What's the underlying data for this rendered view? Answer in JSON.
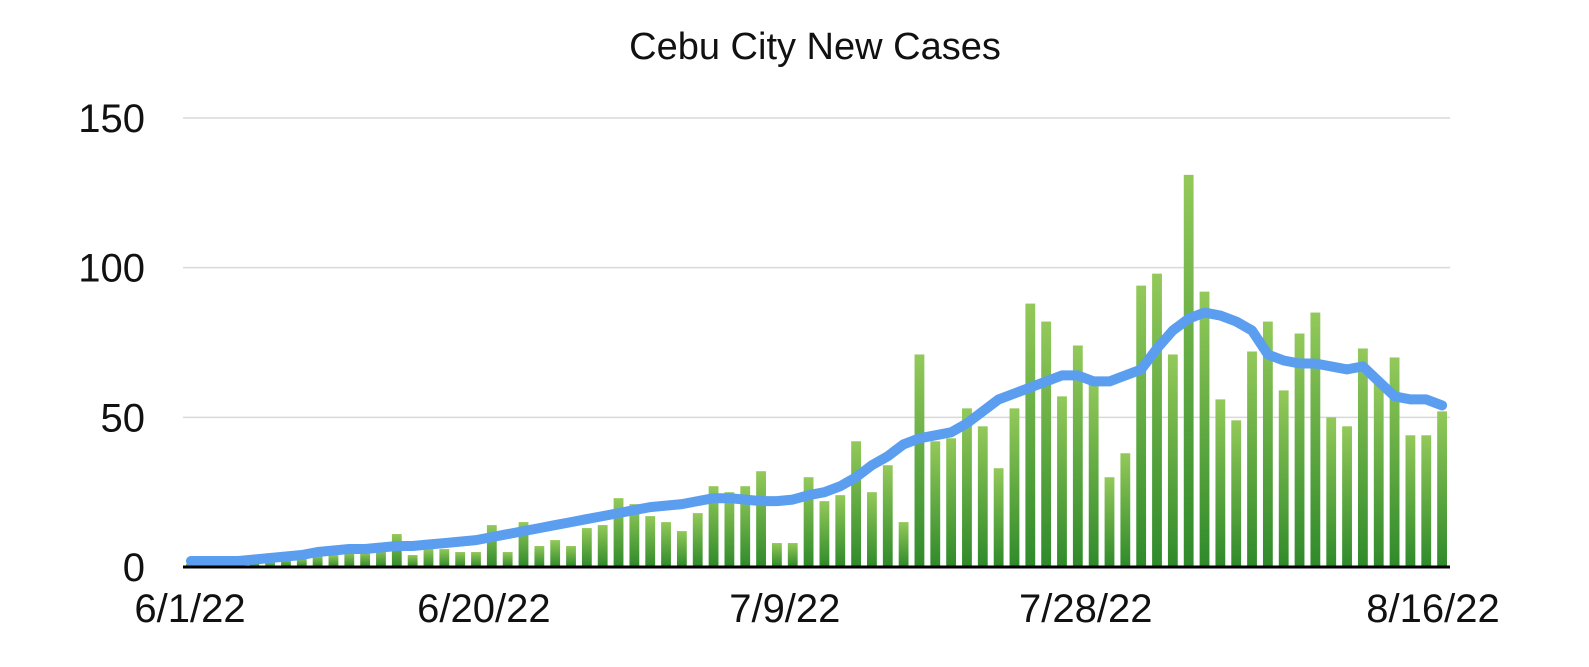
{
  "chart_data": {
    "type": "bar",
    "title": "Cebu City New Cases",
    "xlabel": "",
    "ylabel": "",
    "ylim": [
      0,
      150
    ],
    "yticks": [
      "0",
      "50",
      "100",
      "150"
    ],
    "xticks": [
      "6/1/22",
      "6/20/22",
      "7/9/22",
      "7/28/22",
      "8/16/22"
    ],
    "grid": true,
    "colors": {
      "bars_top": "#8dc153",
      "bars_bottom": "#2f8a2a",
      "line": "#5b9ef0",
      "grid": "#d9d9d9",
      "axis": "#000000"
    },
    "series": [
      {
        "type": "bar",
        "values": [
          1,
          1,
          1,
          1,
          2,
          2,
          3,
          3,
          4,
          4,
          5,
          5,
          6,
          11,
          4,
          6,
          6,
          5,
          5,
          14,
          5,
          15,
          7,
          9,
          7,
          13,
          14,
          23,
          21,
          17,
          15,
          12,
          18,
          27,
          25,
          27,
          32,
          8,
          8,
          30,
          22,
          24,
          42,
          25,
          34,
          15,
          71,
          42,
          43,
          53,
          47,
          33,
          53,
          88,
          82,
          57,
          74,
          63,
          30,
          38,
          94,
          98,
          71,
          131,
          92,
          56,
          49,
          72,
          82,
          59,
          78,
          85,
          50,
          47,
          73,
          62,
          70,
          44,
          44,
          52
        ]
      },
      {
        "type": "line",
        "values": [
          2,
          2,
          2,
          2,
          2.5,
          3,
          3.5,
          4,
          5,
          5.5,
          6,
          6,
          6.5,
          7,
          7,
          7.5,
          8,
          8.5,
          9,
          10,
          11,
          12,
          13,
          14,
          15,
          16,
          17,
          18,
          19,
          20,
          20.5,
          21,
          22,
          23,
          23,
          22.5,
          22,
          22,
          22.5,
          24,
          25,
          27,
          30,
          34,
          37,
          41,
          43,
          44,
          45,
          48,
          52,
          56,
          58,
          60,
          62,
          64,
          64,
          62,
          62,
          64,
          66,
          73,
          79,
          83,
          85,
          84,
          82,
          79,
          71,
          69,
          68,
          68,
          67,
          66,
          67,
          62,
          57,
          56,
          56,
          54
        ]
      }
    ]
  }
}
